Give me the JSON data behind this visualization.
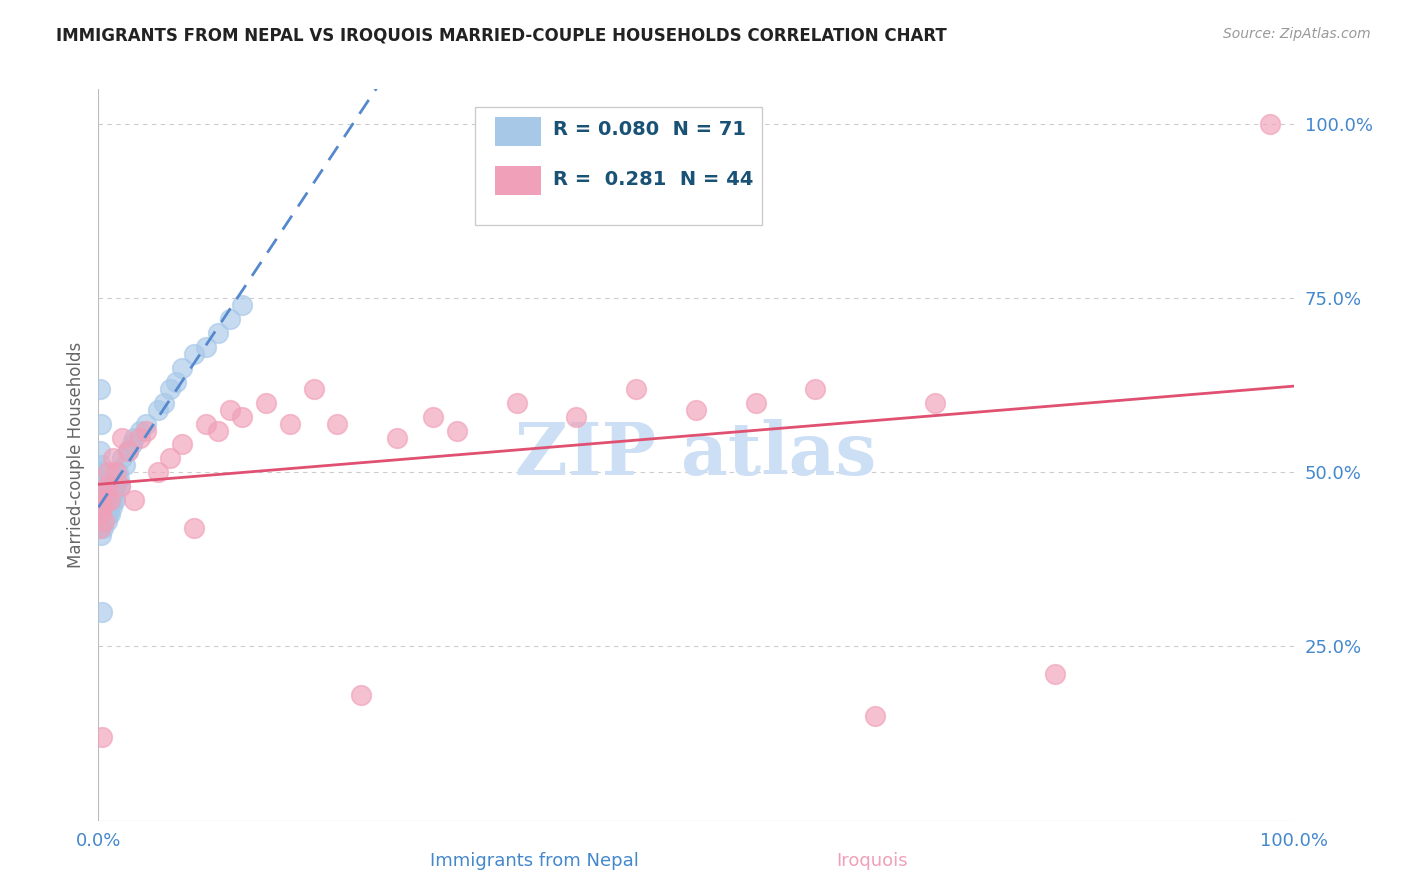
{
  "title": "IMMIGRANTS FROM NEPAL VS IROQUOIS MARRIED-COUPLE HOUSEHOLDS CORRELATION CHART",
  "source_text": "Source: ZipAtlas.com",
  "ylabel": "Married-couple Households",
  "legend_r1": "R = 0.080",
  "legend_n1": "N = 71",
  "legend_r2": "R =  0.281",
  "legend_n2": "N = 44",
  "blue_color": "#a8c8e8",
  "pink_color": "#f0a0b8",
  "blue_line_color": "#5588cc",
  "pink_line_color": "#e05070",
  "title_color": "#222222",
  "axis_label_color": "#666666",
  "tick_color": "#4488cc",
  "source_color": "#999999",
  "watermark_color": "#ccdff5",
  "background_color": "#ffffff",
  "grid_color": "#cccccc",
  "xlim": [
    0.0,
    1.0
  ],
  "ylim": [
    0.0,
    1.05
  ],
  "nepal_x": [
    0.001,
    0.001,
    0.001,
    0.001,
    0.001,
    0.002,
    0.002,
    0.002,
    0.002,
    0.002,
    0.003,
    0.003,
    0.003,
    0.003,
    0.003,
    0.003,
    0.003,
    0.004,
    0.004,
    0.004,
    0.004,
    0.004,
    0.004,
    0.005,
    0.005,
    0.005,
    0.005,
    0.005,
    0.006,
    0.006,
    0.006,
    0.006,
    0.007,
    0.007,
    0.007,
    0.008,
    0.008,
    0.009,
    0.009,
    0.01,
    0.01,
    0.011,
    0.011,
    0.012,
    0.012,
    0.013,
    0.014,
    0.015,
    0.016,
    0.017,
    0.018,
    0.02,
    0.022,
    0.025,
    0.028,
    0.03,
    0.035,
    0.04,
    0.05,
    0.055,
    0.06,
    0.065,
    0.07,
    0.08,
    0.09,
    0.1,
    0.11,
    0.12,
    0.001,
    0.002,
    0.003
  ],
  "nepal_y": [
    0.47,
    0.44,
    0.42,
    0.5,
    0.53,
    0.46,
    0.43,
    0.48,
    0.41,
    0.51,
    0.45,
    0.44,
    0.43,
    0.49,
    0.47,
    0.46,
    0.5,
    0.44,
    0.43,
    0.46,
    0.48,
    0.45,
    0.42,
    0.45,
    0.44,
    0.47,
    0.43,
    0.5,
    0.46,
    0.45,
    0.48,
    0.44,
    0.47,
    0.45,
    0.43,
    0.46,
    0.44,
    0.45,
    0.47,
    0.46,
    0.44,
    0.47,
    0.45,
    0.46,
    0.48,
    0.47,
    0.46,
    0.48,
    0.5,
    0.49,
    0.48,
    0.52,
    0.51,
    0.53,
    0.54,
    0.55,
    0.56,
    0.57,
    0.59,
    0.6,
    0.62,
    0.63,
    0.65,
    0.67,
    0.68,
    0.7,
    0.72,
    0.74,
    0.62,
    0.57,
    0.3
  ],
  "iroquois_x": [
    0.001,
    0.002,
    0.003,
    0.003,
    0.004,
    0.005,
    0.006,
    0.007,
    0.008,
    0.01,
    0.012,
    0.015,
    0.018,
    0.02,
    0.025,
    0.03,
    0.035,
    0.04,
    0.05,
    0.06,
    0.07,
    0.08,
    0.09,
    0.1,
    0.11,
    0.12,
    0.14,
    0.16,
    0.18,
    0.2,
    0.22,
    0.25,
    0.28,
    0.3,
    0.35,
    0.4,
    0.45,
    0.5,
    0.55,
    0.6,
    0.65,
    0.7,
    0.8,
    0.98
  ],
  "iroquois_y": [
    0.42,
    0.44,
    0.12,
    0.45,
    0.47,
    0.43,
    0.46,
    0.48,
    0.5,
    0.46,
    0.52,
    0.5,
    0.48,
    0.55,
    0.53,
    0.46,
    0.55,
    0.56,
    0.5,
    0.52,
    0.54,
    0.42,
    0.57,
    0.56,
    0.59,
    0.58,
    0.6,
    0.57,
    0.62,
    0.57,
    0.18,
    0.55,
    0.58,
    0.56,
    0.6,
    0.58,
    0.62,
    0.59,
    0.6,
    0.62,
    0.15,
    0.6,
    0.21,
    1.0
  ],
  "bottom_label1": "Immigrants from Nepal",
  "bottom_label2": "Iroquois"
}
